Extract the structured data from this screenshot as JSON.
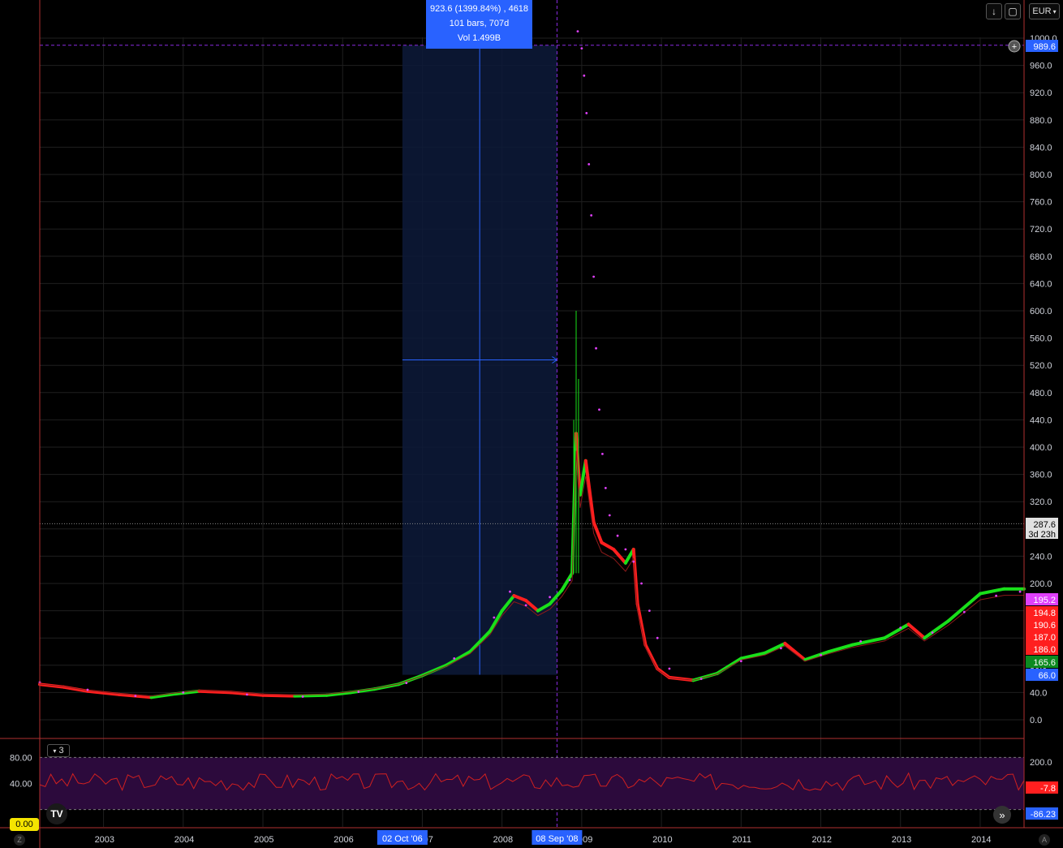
{
  "toolbar": {
    "currency": "EUR",
    "download_icon": "arrow-down-icon",
    "fullscreen_icon": "fullscreen-icon"
  },
  "measure_tooltip": {
    "line1": "923.6 (1399.84%) , 4618",
    "line2": "101 bars, 707d",
    "line3": "Vol 1.499B"
  },
  "indicator_collapse": "3",
  "oscillator_level_input": "0.00",
  "corner_left": "Z",
  "corner_right": "A",
  "logo": "TV",
  "colors": {
    "up": "#19e01a",
    "down": "#ff1f1f",
    "dots": "#e040fb",
    "tooltip": "#2962ff",
    "grid": "#1f1f1f",
    "axis_border": "#b03030",
    "oscillator_band": "#2c0a3c"
  },
  "chart_data": [
    {
      "type": "line",
      "pane": "price",
      "x_ticks": [
        "2003",
        "2004",
        "2005",
        "2006",
        "2007",
        "2008",
        "2009",
        "2010",
        "2011",
        "2012",
        "2013",
        "2014"
      ],
      "y_ticks": [
        "0.0",
        "40.0",
        "80.0",
        "120.0",
        "160.0",
        "200.0",
        "240.0",
        "280.0",
        "320.0",
        "360.0",
        "400.0",
        "440.0",
        "480.0",
        "520.0",
        "560.0",
        "600.0",
        "640.0",
        "680.0",
        "720.0",
        "760.0",
        "800.0",
        "840.0",
        "880.0",
        "920.0",
        "960.0",
        "1000.0"
      ],
      "ylim": [
        0,
        1000
      ],
      "xlim": [
        2002.2,
        2014.55
      ],
      "series": [
        {
          "values": [
            [
              2002.2,
              52
            ],
            [
              2002.5,
              48
            ],
            [
              2002.8,
              42
            ],
            [
              2003.2,
              37
            ],
            [
              2003.6,
              33
            ],
            [
              2003.9,
              38
            ],
            [
              2004.2,
              42
            ],
            [
              2004.6,
              40
            ],
            [
              2005.0,
              36
            ],
            [
              2005.4,
              35
            ],
            [
              2005.8,
              36
            ],
            [
              2006.1,
              40
            ],
            [
              2006.4,
              45
            ],
            [
              2006.7,
              52
            ],
            [
              2007.0,
              65
            ],
            [
              2007.3,
              80
            ],
            [
              2007.6,
              100
            ],
            [
              2007.85,
              130
            ],
            [
              2008.0,
              160
            ],
            [
              2008.15,
              182
            ],
            [
              2008.3,
              175
            ],
            [
              2008.45,
              160
            ],
            [
              2008.6,
              170
            ],
            [
              2008.75,
              190
            ],
            [
              2008.88,
              215
            ],
            [
              2008.93,
              420
            ],
            [
              2008.98,
              330
            ],
            [
              2009.05,
              380
            ],
            [
              2009.15,
              290
            ],
            [
              2009.25,
              260
            ],
            [
              2009.4,
              250
            ],
            [
              2009.55,
              230
            ],
            [
              2009.65,
              250
            ],
            [
              2009.7,
              170
            ],
            [
              2009.8,
              110
            ],
            [
              2009.95,
              75
            ],
            [
              2010.1,
              62
            ],
            [
              2010.4,
              58
            ],
            [
              2010.7,
              68
            ],
            [
              2011.0,
              90
            ],
            [
              2011.3,
              98
            ],
            [
              2011.55,
              112
            ],
            [
              2011.8,
              88
            ],
            [
              2012.1,
              100
            ],
            [
              2012.4,
              110
            ],
            [
              2012.8,
              120
            ],
            [
              2013.1,
              140
            ],
            [
              2013.3,
              120
            ],
            [
              2013.6,
              145
            ],
            [
              2014.0,
              185
            ],
            [
              2014.3,
              192
            ],
            [
              2014.55,
              192
            ]
          ]
        }
      ],
      "dots": [
        [
          2002.2,
          55
        ],
        [
          2002.8,
          44
        ],
        [
          2003.4,
          35
        ],
        [
          2004.0,
          40
        ],
        [
          2004.8,
          37
        ],
        [
          2005.5,
          34
        ],
        [
          2006.2,
          41
        ],
        [
          2006.8,
          54
        ],
        [
          2007.4,
          90
        ],
        [
          2007.9,
          150
        ],
        [
          2008.1,
          188
        ],
        [
          2008.3,
          168
        ],
        [
          2008.6,
          180
        ],
        [
          2008.85,
          205
        ],
        [
          2008.95,
          1010
        ],
        [
          2009.0,
          985
        ],
        [
          2009.03,
          945
        ],
        [
          2009.06,
          890
        ],
        [
          2009.09,
          815
        ],
        [
          2009.12,
          740
        ],
        [
          2009.15,
          650
        ],
        [
          2009.18,
          545
        ],
        [
          2009.22,
          455
        ],
        [
          2009.26,
          390
        ],
        [
          2009.3,
          340
        ],
        [
          2009.35,
          300
        ],
        [
          2009.45,
          270
        ],
        [
          2009.55,
          250
        ],
        [
          2009.65,
          232
        ],
        [
          2009.75,
          200
        ],
        [
          2009.85,
          160
        ],
        [
          2009.95,
          120
        ],
        [
          2010.1,
          75
        ],
        [
          2010.5,
          60
        ],
        [
          2011.0,
          86
        ],
        [
          2011.5,
          105
        ],
        [
          2012.0,
          95
        ],
        [
          2012.5,
          115
        ],
        [
          2013.0,
          135
        ],
        [
          2013.4,
          128
        ],
        [
          2013.8,
          158
        ],
        [
          2014.2,
          182
        ],
        [
          2014.5,
          188
        ]
      ],
      "measure": {
        "x_start_label": "02 Oct '06",
        "x_end_label": "08 Sep '08",
        "y_from": 66.0,
        "y_to": 989.6
      },
      "right_labels": [
        {
          "text": "989.6",
          "color": "#2962ff"
        },
        {
          "text": "287.6",
          "sub": "3d 23h",
          "color": "#d1d4dc"
        },
        {
          "text": "195.2",
          "color": "#e040fb"
        },
        {
          "text": "194.8",
          "color": "#ff1f1f"
        },
        {
          "text": "190.6",
          "color": "#ff1f1f"
        },
        {
          "text": "187.0",
          "color": "#ff1f1f"
        },
        {
          "text": "186.0",
          "color": "#ff1f1f"
        },
        {
          "text": "165.6",
          "color": "#0c8a20"
        },
        {
          "text": "66.0",
          "color": "#2962ff"
        }
      ]
    },
    {
      "type": "line",
      "pane": "oscillator",
      "left_ticks": [
        "80.00",
        "40.00"
      ],
      "right_ticks": [
        "200.0"
      ],
      "right_labels": [
        {
          "text": "-7.8",
          "color": "#ff1f1f"
        },
        {
          "text": "-86.23",
          "color": "#2962ff"
        }
      ],
      "band": [
        20,
        80
      ],
      "ylim": [
        0,
        100
      ]
    }
  ]
}
